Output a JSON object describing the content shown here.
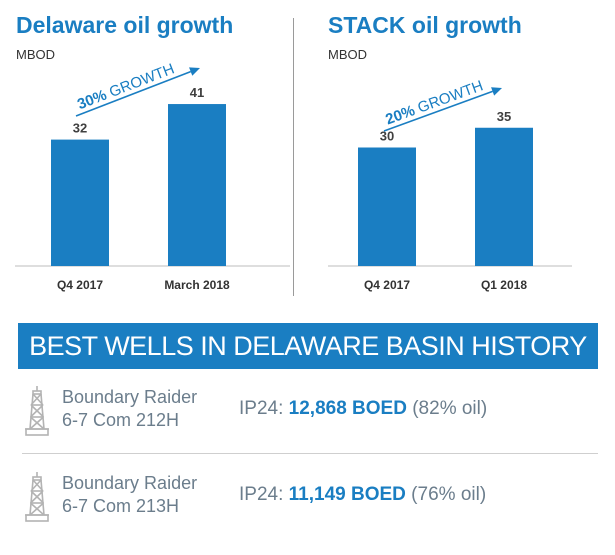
{
  "colors": {
    "accent": "#1a7ec2",
    "text_gray": "#6b7d8c",
    "divider": "#9a9a9a"
  },
  "chart_data": [
    {
      "type": "bar",
      "title": "Delaware oil growth",
      "ylabel": "MBOD",
      "categories": [
        "Q4 2017",
        "March 2018"
      ],
      "values": [
        32,
        41
      ],
      "value_labels": [
        "32",
        "41"
      ],
      "annotation": {
        "bold": "30%",
        "rest": " GROWTH"
      },
      "ylim": [
        0,
        50
      ]
    },
    {
      "type": "bar",
      "title": "STACK oil growth",
      "ylabel": "MBOD",
      "categories": [
        "Q4 2017",
        "Q1 2018"
      ],
      "values": [
        30,
        35
      ],
      "value_labels": [
        "30",
        "35"
      ],
      "annotation": {
        "bold": "20%",
        "rest": " GROWTH"
      },
      "ylim": [
        0,
        50
      ]
    }
  ],
  "banner": {
    "text": "BEST WELLS IN DELAWARE BASIN HISTORY"
  },
  "wells": [
    {
      "icon": "oil-derrick-icon",
      "name_line1": "Boundary Raider",
      "name_line2": "6-7 Com 212H",
      "ip_prefix": "IP24: ",
      "ip_value": "12,868 BOED",
      "ip_suffix": " (82% oil)"
    },
    {
      "icon": "oil-derrick-icon",
      "name_line1": "Boundary Raider",
      "name_line2": "6-7 Com 213H",
      "ip_prefix": "IP24: ",
      "ip_value": "11,149 BOED",
      "ip_suffix": " (76% oil)"
    }
  ]
}
